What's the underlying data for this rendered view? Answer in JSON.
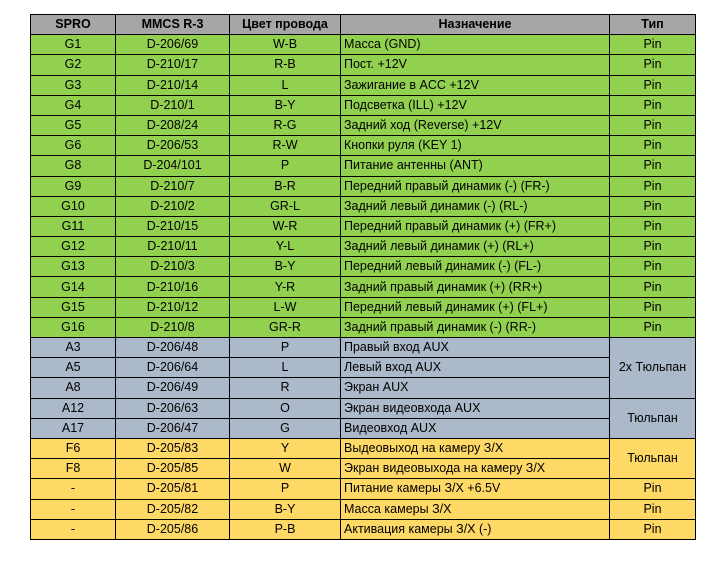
{
  "colors": {
    "header": "#a6a6a6",
    "green": "#92d050",
    "blue": "#acb9ca",
    "yellow": "#ffd966"
  },
  "table": {
    "headers": [
      "SPRO",
      "MMCS R-3",
      "Цвет провода",
      "Назначение",
      "Тип"
    ],
    "rows": [
      {
        "group": "green",
        "spro": "G1",
        "mmcs": "D-206/69",
        "wire": "W-B",
        "purpose": "Масса (GND)",
        "type": "Pin",
        "span": 1
      },
      {
        "group": "green",
        "spro": "G2",
        "mmcs": "D-210/17",
        "wire": "R-B",
        "purpose": "Пост. +12V",
        "type": "Pin",
        "span": 1
      },
      {
        "group": "green",
        "spro": "G3",
        "mmcs": "D-210/14",
        "wire": "L",
        "purpose": "Зажигание в ACC +12V",
        "type": "Pin",
        "span": 1
      },
      {
        "group": "green",
        "spro": "G4",
        "mmcs": "D-210/1",
        "wire": "B-Y",
        "purpose": "Подсветка (ILL) +12V",
        "type": "Pin",
        "span": 1
      },
      {
        "group": "green",
        "spro": "G5",
        "mmcs": "D-208/24",
        "wire": "R-G",
        "purpose": "Задний ход (Reverse) +12V",
        "type": "Pin",
        "span": 1
      },
      {
        "group": "green",
        "spro": "G6",
        "mmcs": "D-206/53",
        "wire": "R-W",
        "purpose": "Кнопки руля (KEY 1)",
        "type": "Pin",
        "span": 1
      },
      {
        "group": "green",
        "spro": "G8",
        "mmcs": "D-204/101",
        "wire": "P",
        "purpose": "Питание антенны (ANT)",
        "type": "Pin",
        "span": 1
      },
      {
        "group": "green",
        "spro": "G9",
        "mmcs": "D-210/7",
        "wire": "B-R",
        "purpose": "Передний правый динамик (-) (FR-)",
        "type": "Pin",
        "span": 1
      },
      {
        "group": "green",
        "spro": "G10",
        "mmcs": "D-210/2",
        "wire": "GR-L",
        "purpose": "Задний левый динамик (-) (RL-)",
        "type": "Pin",
        "span": 1
      },
      {
        "group": "green",
        "spro": "G11",
        "mmcs": "D-210/15",
        "wire": "W-R",
        "purpose": "Передний правый динамик (+) (FR+)",
        "type": "Pin",
        "span": 1
      },
      {
        "group": "green",
        "spro": "G12",
        "mmcs": "D-210/11",
        "wire": "Y-L",
        "purpose": "Задний левый динамик (+) (RL+)",
        "type": "Pin",
        "span": 1
      },
      {
        "group": "green",
        "spro": "G13",
        "mmcs": "D-210/3",
        "wire": "B-Y",
        "purpose": "Передний левый динамик (-) (FL-)",
        "type": "Pin",
        "span": 1
      },
      {
        "group": "green",
        "spro": "G14",
        "mmcs": "D-210/16",
        "wire": "Y-R",
        "purpose": "Задний правый динамик (+) (RR+)",
        "type": "Pin",
        "span": 1
      },
      {
        "group": "green",
        "spro": "G15",
        "mmcs": "D-210/12",
        "wire": "L-W",
        "purpose": "Передний левый динамик (+) (FL+)",
        "type": "Pin",
        "span": 1
      },
      {
        "group": "green",
        "spro": "G16",
        "mmcs": "D-210/8",
        "wire": "GR-R",
        "purpose": "Задний правый динамик (-) (RR-)",
        "type": "Pin",
        "span": 1
      },
      {
        "group": "blue",
        "spro": "A3",
        "mmcs": "D-206/48",
        "wire": "P",
        "purpose": "Правый вход AUX",
        "type": "",
        "span": 0
      },
      {
        "group": "blue",
        "spro": "A5",
        "mmcs": "D-206/64",
        "wire": "L",
        "purpose": "Левый вход AUX",
        "type": "2x Тюльпан",
        "span": 3
      },
      {
        "group": "blue",
        "spro": "A8",
        "mmcs": "D-206/49",
        "wire": "R",
        "purpose": "Экран AUX",
        "type": "",
        "span": 0
      },
      {
        "group": "blue",
        "spro": "A12",
        "mmcs": "D-206/63",
        "wire": "O",
        "purpose": "Экран видеовхода AUX",
        "type": "Тюльпан",
        "span": 2
      },
      {
        "group": "blue",
        "spro": "A17",
        "mmcs": "D-206/47",
        "wire": "G",
        "purpose": "Видеовход AUX",
        "type": "",
        "span": 0
      },
      {
        "group": "yellow",
        "spro": "F6",
        "mmcs": "D-205/83",
        "wire": "Y",
        "purpose": "Выдеовыход на камеру З/Х",
        "type": "Тюльпан",
        "span": 2
      },
      {
        "group": "yellow",
        "spro": "F8",
        "mmcs": "D-205/85",
        "wire": "W",
        "purpose": "Экран видеовыхода на камеру З/Х",
        "type": "",
        "span": 0
      },
      {
        "group": "yellow",
        "spro": "-",
        "mmcs": "D-205/81",
        "wire": "P",
        "purpose": "Питание камеры З/Х +6.5V",
        "type": "Pin",
        "span": 1
      },
      {
        "group": "yellow",
        "spro": "-",
        "mmcs": "D-205/82",
        "wire": "B-Y",
        "purpose": "Масса камеры З/Х",
        "type": "Pin",
        "span": 1
      },
      {
        "group": "yellow",
        "spro": "-",
        "mmcs": "D-205/86",
        "wire": "P-B",
        "purpose": "Активация камеры З/Х (-)",
        "type": "Pin",
        "span": 1
      }
    ]
  }
}
